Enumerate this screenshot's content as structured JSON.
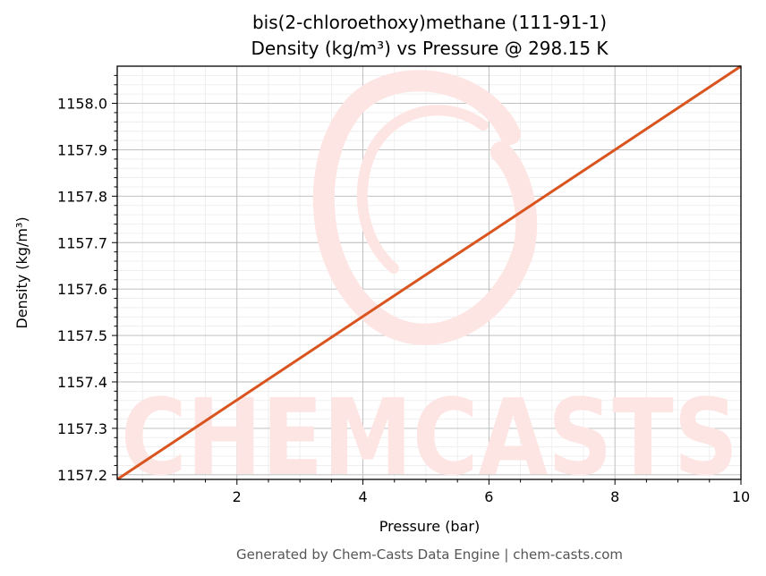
{
  "chart_data": {
    "type": "line",
    "title": "bis(2-chloroethoxy)methane (111-91-1)",
    "subtitle": "Density (kg/m³) vs Pressure @ 298.15 K",
    "xlabel": "Pressure (bar)",
    "ylabel": "Density (kg/m³)",
    "xlim": [
      0.1,
      10
    ],
    "ylim": [
      1157.19,
      1158.08
    ],
    "xticks": [
      2,
      4,
      6,
      8,
      10
    ],
    "yticks": [
      1157.2,
      1157.3,
      1157.4,
      1157.5,
      1157.6,
      1157.7,
      1157.8,
      1157.9,
      1158.0
    ],
    "ytick_labels": [
      "1157.2",
      "1157.3",
      "1157.4",
      "1157.5",
      "1157.6",
      "1157.7",
      "1157.8",
      "1157.9",
      "1158.0"
    ],
    "grid": true,
    "series": [
      {
        "color": "#d9541e",
        "x": [
          0.1,
          1,
          2,
          3,
          4,
          5,
          6,
          7,
          8,
          9,
          10
        ],
        "y": [
          1157.19,
          1157.271,
          1157.361,
          1157.451,
          1157.541,
          1157.631,
          1157.72,
          1157.81,
          1157.9,
          1157.99,
          1158.08
        ]
      }
    ]
  },
  "watermark": {
    "text": "CHEMCASTS",
    "color": "#fde5e3"
  },
  "footer": {
    "text": "Generated by Chem-Casts Data Engine | chem-casts.com"
  }
}
